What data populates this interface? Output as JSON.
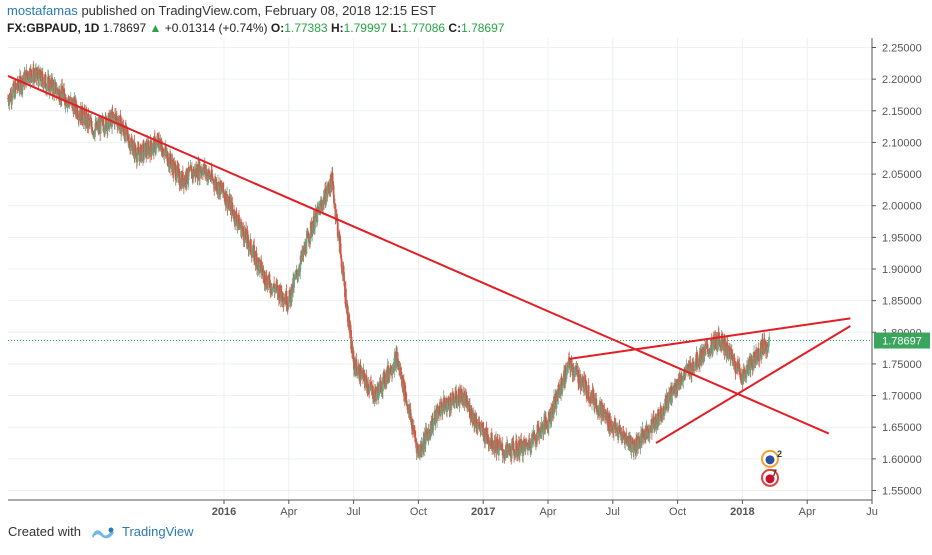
{
  "header": {
    "author": "mostafamas",
    "published_text": "published on TradingView.com, February 08, 2018 12:15 EST",
    "symbol": "FX:GBPAUD, 1D",
    "last": "1.78697",
    "arrow": "▲",
    "change": "+0.01314 (+0.74%)",
    "o_label": "O:",
    "o_val": "1.77383",
    "h_label": "H:",
    "h_val": "1.79997",
    "l_label": "L:",
    "l_val": "1.77086",
    "c_label": "C:",
    "c_val": "1.78697"
  },
  "footer": {
    "created_with": "Created with",
    "brand": "TradingView"
  },
  "colors": {
    "candle_up": "#6ba583",
    "candle_down": "#d75442",
    "trendline": "#e31e24",
    "price_line": "#2e9e5b",
    "price_label_bg": "#3aa55d",
    "grid": "#eef0f3",
    "axis": "#555555"
  },
  "chart_data": {
    "type": "candlestick",
    "symbol": "FX:GBPAUD",
    "interval": "1D",
    "last_price": 1.78697,
    "last_price_label": "1.78697",
    "yticks": [
      "2.25000",
      "2.20000",
      "2.15000",
      "2.10000",
      "2.05000",
      "2.00000",
      "1.95000",
      "1.90000",
      "1.85000",
      "1.80000",
      "1.75000",
      "1.70000",
      "1.65000",
      "1.60000",
      "1.55000"
    ],
    "ylim": [
      1.535,
      2.265
    ],
    "xticks": [
      {
        "label": "2016",
        "x": "2016-01",
        "bold": true
      },
      {
        "label": "Apr",
        "x": "2016-04",
        "bold": false
      },
      {
        "label": "Jul",
        "x": "2016-07",
        "bold": false
      },
      {
        "label": "Oct",
        "x": "2016-10",
        "bold": false
      },
      {
        "label": "2017",
        "x": "2017-01",
        "bold": true
      },
      {
        "label": "Apr",
        "x": "2017-04",
        "bold": false
      },
      {
        "label": "Jul",
        "x": "2017-07",
        "bold": false
      },
      {
        "label": "Oct",
        "x": "2017-10",
        "bold": false
      },
      {
        "label": "2018",
        "x": "2018-01",
        "bold": true
      },
      {
        "label": "Apr",
        "x": "2018-04",
        "bold": false
      },
      {
        "label": "Ju",
        "x": "2018-07",
        "bold": false
      }
    ],
    "xlim": [
      "2015-03",
      "2018-07"
    ],
    "price_path": [
      [
        "2015-03",
        2.17
      ],
      [
        "2015-04",
        2.21
      ],
      [
        "2015-05",
        2.19
      ],
      [
        "2015-06",
        2.16
      ],
      [
        "2015-07",
        2.12
      ],
      [
        "2015-08",
        2.14
      ],
      [
        "2015-09",
        2.08
      ],
      [
        "2015-10",
        2.1
      ],
      [
        "2015-11",
        2.04
      ],
      [
        "2015-12",
        2.06
      ],
      [
        "2016-01",
        2.02
      ],
      [
        "2016-02",
        1.95
      ],
      [
        "2016-03",
        1.88
      ],
      [
        "2016-04",
        1.85
      ],
      [
        "2016-05",
        1.96
      ],
      [
        "2016-06",
        2.04
      ],
      [
        "2016-07",
        1.75
      ],
      [
        "2016-08",
        1.7
      ],
      [
        "2016-09",
        1.76
      ],
      [
        "2016-10",
        1.61
      ],
      [
        "2016-11",
        1.68
      ],
      [
        "2016-12",
        1.7
      ],
      [
        "2017-01",
        1.64
      ],
      [
        "2017-02",
        1.61
      ],
      [
        "2017-03",
        1.62
      ],
      [
        "2017-04",
        1.66
      ],
      [
        "2017-05",
        1.75
      ],
      [
        "2017-06",
        1.7
      ],
      [
        "2017-07",
        1.65
      ],
      [
        "2017-08",
        1.62
      ],
      [
        "2017-09",
        1.66
      ],
      [
        "2017-10",
        1.72
      ],
      [
        "2017-11",
        1.76
      ],
      [
        "2017-12",
        1.79
      ],
      [
        "2018-01",
        1.73
      ],
      [
        "2018-02",
        1.78
      ]
    ],
    "trendlines": [
      {
        "name": "long-downtrend",
        "from": [
          "2015-03",
          2.205
        ],
        "to": [
          "2018-05",
          1.64
        ]
      },
      {
        "name": "upper-resistance",
        "from": [
          "2017-05",
          1.758
        ],
        "to": [
          "2018-06",
          1.822
        ]
      },
      {
        "name": "rising-support",
        "from": [
          "2017-09",
          1.625
        ],
        "to": [
          "2018-06",
          1.81
        ]
      }
    ],
    "events": [
      {
        "label": "2",
        "x": "2018-02",
        "y": 1.6
      },
      {
        "label": "7",
        "x": "2018-02",
        "y": 1.57
      }
    ]
  }
}
